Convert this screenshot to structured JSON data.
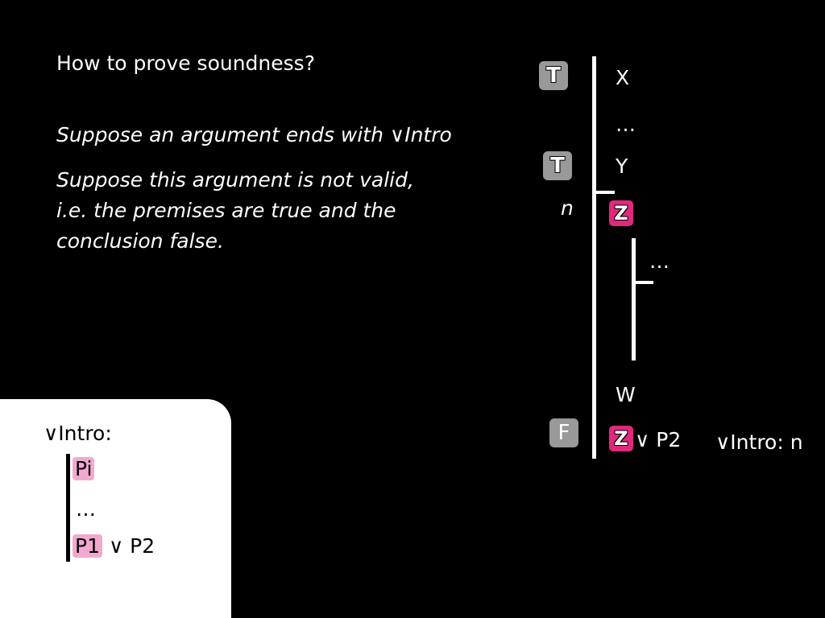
{
  "slide": {
    "heading": "How to prove soundness?",
    "line1": "Suppose an argument ends with ∨Intro",
    "line2": "Suppose this argument is not valid,",
    "line3": "i.e. the premises are true and the",
    "line4": "conclusion false."
  },
  "proof": {
    "tag_t": "T",
    "tag_f": "F",
    "x": "X",
    "dots": "…",
    "y": "Y",
    "n": "n",
    "z": "Z",
    "w": "W",
    "or_p2": "∨ P2",
    "justification": "∨Intro: n"
  },
  "rule_panel": {
    "title": "∨Intro:",
    "pi": "Pi",
    "dots": "…",
    "p1": "P1",
    "or_p2": "∨ P2"
  },
  "colors": {
    "accent": "#e0287c",
    "highlight": "#f2a9d0",
    "tag_gray": "#999999"
  }
}
